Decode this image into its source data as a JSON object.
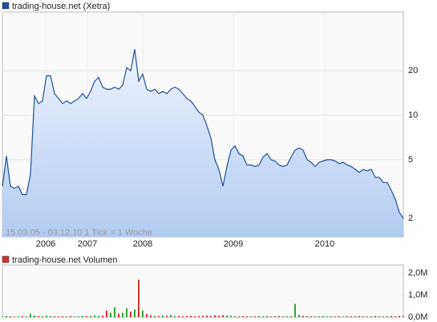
{
  "chart_data": [
    {
      "type": "area",
      "title": "trading-house.net (Xetra)",
      "subtitle": "15.03.05 - 03.12.10   1 Tick = 1 Woche",
      "color": "#1f4e9e",
      "fill": "#b3cbf2",
      "log_scale": true,
      "grid": true,
      "x": [
        0,
        1,
        2,
        3,
        4,
        5,
        6,
        7,
        8,
        9,
        10,
        11,
        12,
        13,
        14,
        15,
        16,
        17,
        18,
        19,
        20,
        21,
        22,
        23,
        24,
        25,
        26,
        27,
        28,
        29,
        30,
        31,
        32,
        33,
        34,
        35,
        36,
        37,
        38,
        39,
        40,
        41,
        42,
        43,
        44,
        45,
        46,
        47,
        48,
        49,
        50,
        51,
        52,
        53,
        54,
        55,
        56,
        57,
        58,
        59,
        60,
        61,
        62,
        63,
        64,
        65,
        66,
        67,
        68,
        69,
        70,
        71,
        72,
        73,
        74,
        75,
        76,
        77,
        78,
        79,
        80,
        81,
        82,
        83,
        84,
        85,
        86,
        87,
        88,
        89,
        90,
        91,
        92,
        93,
        94,
        95,
        96,
        97,
        98,
        99,
        100
      ],
      "values": [
        3.3,
        5.3,
        3.3,
        3.2,
        3.3,
        2.9,
        2.9,
        4.0,
        13.5,
        12.0,
        12.5,
        18.5,
        18.5,
        14.0,
        13.0,
        12.0,
        12.5,
        12.0,
        12.5,
        13.0,
        14.0,
        13.0,
        14.5,
        17.0,
        18.0,
        15.5,
        15.0,
        15.0,
        15.5,
        15.0,
        16.0,
        21.0,
        20.0,
        28.0,
        17.0,
        19.0,
        15.0,
        14.5,
        15.0,
        14.0,
        14.5,
        14.0,
        15.0,
        15.5,
        15.0,
        14.0,
        13.0,
        12.5,
        11.5,
        10.5,
        10.0,
        8.5,
        7.0,
        5.0,
        4.3,
        3.3,
        4.5,
        5.8,
        6.2,
        5.5,
        5.3,
        4.6,
        4.6,
        4.5,
        4.6,
        5.2,
        5.5,
        5.0,
        4.9,
        4.6,
        4.5,
        4.6,
        5.2,
        5.8,
        6.0,
        5.8,
        5.0,
        4.8,
        4.5,
        4.8,
        4.9,
        5.0,
        5.0,
        4.9,
        4.7,
        4.8,
        4.6,
        4.5,
        4.3,
        4.1,
        4.3,
        4.2,
        4.3,
        3.8,
        3.8,
        3.5,
        3.5,
        3.1,
        2.7,
        2.2,
        2.0
      ],
      "xlim": [
        0,
        100
      ],
      "xticks": [
        {
          "value": 10.8,
          "label": "2006"
        },
        {
          "value": 21.2,
          "label": "2007"
        },
        {
          "value": 35,
          "label": "2008"
        },
        {
          "value": 57.6,
          "label": "2009"
        },
        {
          "value": 80.4,
          "label": "2010"
        }
      ],
      "ylim": [
        1.5,
        50
      ],
      "yticks": [
        2,
        5,
        10,
        20
      ]
    },
    {
      "type": "bar",
      "title": "trading-house.net Volumen",
      "colors": [
        "#33a533",
        "#cc3333"
      ],
      "x": [
        0,
        1,
        2,
        3,
        4,
        5,
        6,
        7,
        8,
        9,
        10,
        11,
        12,
        13,
        14,
        15,
        16,
        17,
        18,
        19,
        20,
        21,
        22,
        23,
        24,
        25,
        26,
        27,
        28,
        29,
        30,
        31,
        32,
        33,
        34,
        35,
        36,
        37,
        38,
        39,
        40,
        41,
        42,
        43,
        44,
        45,
        46,
        47,
        48,
        49,
        50,
        51,
        52,
        53,
        54,
        55,
        56,
        57,
        58,
        59,
        60,
        61,
        62,
        63,
        64,
        65,
        66,
        67,
        68,
        69,
        70,
        71,
        72,
        73,
        74,
        75,
        76,
        77,
        78,
        79,
        80,
        81,
        82,
        83,
        84,
        85,
        86,
        87,
        88,
        89,
        90,
        91,
        92,
        93,
        94,
        95,
        96,
        97,
        98,
        99,
        100
      ],
      "values": [
        30000,
        60000,
        40000,
        20000,
        30000,
        40000,
        30000,
        150000,
        80000,
        50000,
        40000,
        70000,
        50000,
        40000,
        30000,
        40000,
        30000,
        50000,
        30000,
        40000,
        60000,
        40000,
        50000,
        80000,
        60000,
        70000,
        300000,
        200000,
        450000,
        150000,
        200000,
        400000,
        250000,
        350000,
        1700000,
        300000,
        150000,
        80000,
        60000,
        50000,
        70000,
        60000,
        100000,
        50000,
        60000,
        40000,
        50000,
        60000,
        40000,
        50000,
        60000,
        70000,
        50000,
        80000,
        60000,
        90000,
        70000,
        60000,
        50000,
        40000,
        50000,
        40000,
        30000,
        40000,
        50000,
        40000,
        60000,
        30000,
        40000,
        50000,
        30000,
        40000,
        50000,
        600000,
        100000,
        60000,
        50000,
        40000,
        30000,
        40000,
        50000,
        30000,
        40000,
        30000,
        40000,
        30000,
        40000,
        30000,
        40000,
        50000,
        40000,
        30000,
        40000,
        50000,
        40000,
        30000,
        40000,
        50000,
        40000,
        60000,
        50000
      ],
      "xlim": [
        0,
        100
      ],
      "ylim": [
        0,
        2370000
      ],
      "yticks": [
        {
          "value": 0,
          "label": "0,0M"
        },
        {
          "value": 1000000,
          "label": "1,0M"
        },
        {
          "value": 2000000,
          "label": "2,0M"
        }
      ]
    }
  ]
}
